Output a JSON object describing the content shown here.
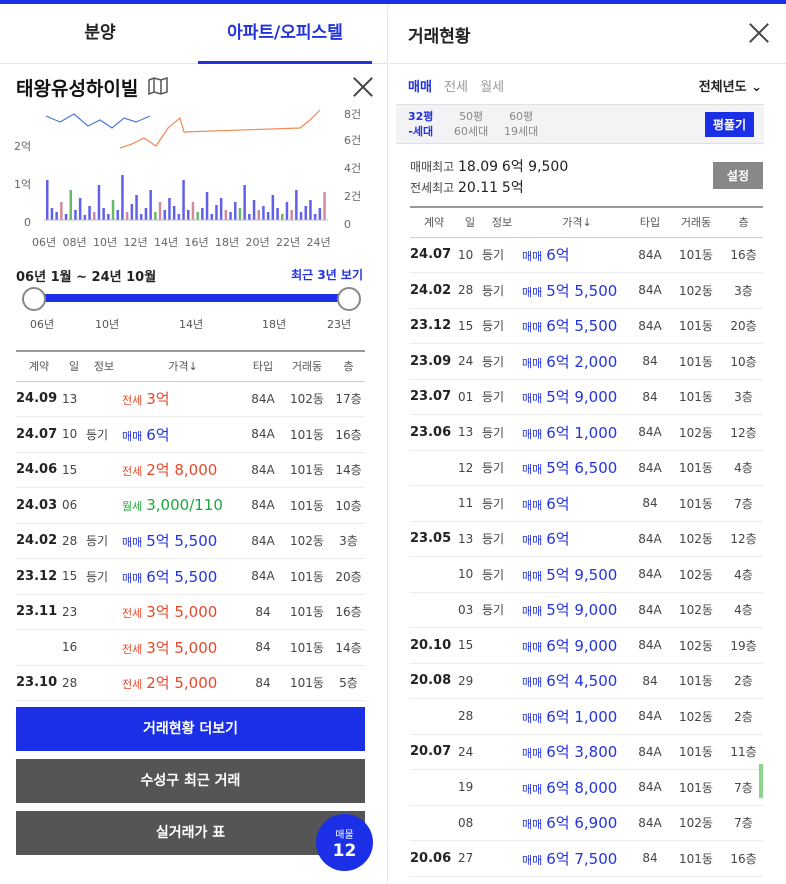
{
  "left": {
    "tabs": [
      "분양",
      "아파트/오피스텔"
    ],
    "title": "태왕유성하이빌",
    "chart": {
      "left_ticks": [
        "2억",
        "1억",
        "0"
      ],
      "right_ticks": [
        "8건",
        "6건",
        "4건",
        "2건",
        "0"
      ],
      "x_ticks": [
        "06년",
        "08년",
        "10년",
        "12년",
        "14년",
        "16년",
        "18년",
        "20년",
        "22년",
        "24년"
      ]
    },
    "period": "06년 1월 ~ 24년 10월",
    "recent_link": "최근 3년 보기",
    "slider_ticks": [
      "06년",
      "10년",
      "14년",
      "18년",
      "23년"
    ],
    "table_headers": [
      "계약",
      "일",
      "정보",
      "가격↓",
      "타입",
      "거래동",
      "층"
    ],
    "rows": [
      {
        "ym": "24.09",
        "d": "13",
        "info": "",
        "kind": "전세",
        "price": "3억",
        "type": "84A",
        "dong": "102동",
        "floor": "17층"
      },
      {
        "ym": "24.07",
        "d": "10",
        "info": "등기",
        "kind": "매매",
        "price": "6억",
        "type": "84A",
        "dong": "101동",
        "floor": "16층"
      },
      {
        "ym": "24.06",
        "d": "15",
        "info": "",
        "kind": "전세",
        "price": "2억 8,000",
        "type": "84A",
        "dong": "101동",
        "floor": "14층"
      },
      {
        "ym": "24.03",
        "d": "06",
        "info": "",
        "kind": "월세",
        "price": "3,000/110",
        "type": "84A",
        "dong": "101동",
        "floor": "10층"
      },
      {
        "ym": "24.02",
        "d": "28",
        "info": "등기",
        "kind": "매매",
        "price": "5억 5,500",
        "type": "84A",
        "dong": "102동",
        "floor": "3층"
      },
      {
        "ym": "23.12",
        "d": "15",
        "info": "등기",
        "kind": "매매",
        "price": "6억 5,500",
        "type": "84A",
        "dong": "101동",
        "floor": "20층"
      },
      {
        "ym": "23.11",
        "d": "23",
        "info": "",
        "kind": "전세",
        "price": "3억 5,000",
        "type": "84",
        "dong": "101동",
        "floor": "16층"
      },
      {
        "ym": "",
        "d": "16",
        "info": "",
        "kind": "전세",
        "price": "3억 5,000",
        "type": "84",
        "dong": "101동",
        "floor": "14층"
      },
      {
        "ym": "23.10",
        "d": "28",
        "info": "",
        "kind": "전세",
        "price": "2억 5,000",
        "type": "84",
        "dong": "101동",
        "floor": "5층"
      }
    ],
    "buttons": [
      "거래현황 더보기",
      "수성구 최근 거래",
      "실거래가 표"
    ],
    "badge": {
      "label": "매물",
      "count": "12"
    }
  },
  "right": {
    "title": "거래현황",
    "deal_tabs": [
      "매매",
      "전세",
      "월세"
    ],
    "year_select": "전체년도",
    "pyeong": [
      {
        "top": "32평",
        "bottom": "-세대"
      },
      {
        "top": "50평",
        "bottom": "60세대"
      },
      {
        "top": "60평",
        "bottom": "19세대"
      }
    ],
    "pyeong_button": "평풀기",
    "max_sale": {
      "label": "매매최고",
      "date": "18.09",
      "price": "6억 9,500"
    },
    "max_jeonse": {
      "label": "전세최고",
      "date": "20.11",
      "price": "5억"
    },
    "settle_button": "설정",
    "table_headers": [
      "계약",
      "일",
      "정보",
      "가격↓",
      "타입",
      "거래동",
      "층"
    ],
    "rows": [
      {
        "ym": "24.07",
        "d": "10",
        "info": "등기",
        "kind": "매매",
        "price": "6억",
        "type": "84A",
        "dong": "101동",
        "floor": "16층"
      },
      {
        "ym": "24.02",
        "d": "28",
        "info": "등기",
        "kind": "매매",
        "price": "5억 5,500",
        "type": "84A",
        "dong": "102동",
        "floor": "3층"
      },
      {
        "ym": "23.12",
        "d": "15",
        "info": "등기",
        "kind": "매매",
        "price": "6억 5,500",
        "type": "84A",
        "dong": "101동",
        "floor": "20층"
      },
      {
        "ym": "23.09",
        "d": "24",
        "info": "등기",
        "kind": "매매",
        "price": "6억 2,000",
        "type": "84",
        "dong": "101동",
        "floor": "10층"
      },
      {
        "ym": "23.07",
        "d": "01",
        "info": "등기",
        "kind": "매매",
        "price": "5억 9,000",
        "type": "84",
        "dong": "101동",
        "floor": "3층"
      },
      {
        "ym": "23.06",
        "d": "13",
        "info": "등기",
        "kind": "매매",
        "price": "6억 1,000",
        "type": "84A",
        "dong": "102동",
        "floor": "12층"
      },
      {
        "ym": "",
        "d": "12",
        "info": "등기",
        "kind": "매매",
        "price": "5억 6,500",
        "type": "84A",
        "dong": "101동",
        "floor": "4층"
      },
      {
        "ym": "",
        "d": "11",
        "info": "등기",
        "kind": "매매",
        "price": "6억",
        "type": "84",
        "dong": "101동",
        "floor": "7층"
      },
      {
        "ym": "23.05",
        "d": "13",
        "info": "등기",
        "kind": "매매",
        "price": "6억",
        "type": "84A",
        "dong": "102동",
        "floor": "12층"
      },
      {
        "ym": "",
        "d": "10",
        "info": "등기",
        "kind": "매매",
        "price": "5억 9,500",
        "type": "84A",
        "dong": "102동",
        "floor": "4층"
      },
      {
        "ym": "",
        "d": "03",
        "info": "등기",
        "kind": "매매",
        "price": "5억 9,000",
        "type": "84A",
        "dong": "102동",
        "floor": "4층"
      },
      {
        "ym": "20.10",
        "d": "15",
        "info": "",
        "kind": "매매",
        "price": "6억 9,000",
        "type": "84A",
        "dong": "102동",
        "floor": "19층"
      },
      {
        "ym": "20.08",
        "d": "29",
        "info": "",
        "kind": "매매",
        "price": "6억 4,500",
        "type": "84",
        "dong": "101동",
        "floor": "2층"
      },
      {
        "ym": "",
        "d": "28",
        "info": "",
        "kind": "매매",
        "price": "6억 1,000",
        "type": "84A",
        "dong": "102동",
        "floor": "2층"
      },
      {
        "ym": "20.07",
        "d": "24",
        "info": "",
        "kind": "매매",
        "price": "6억 3,800",
        "type": "84A",
        "dong": "101동",
        "floor": "11층"
      },
      {
        "ym": "",
        "d": "19",
        "info": "",
        "kind": "매매",
        "price": "6억 8,000",
        "type": "84A",
        "dong": "101동",
        "floor": "7층"
      },
      {
        "ym": "",
        "d": "08",
        "info": "",
        "kind": "매매",
        "price": "6억 6,900",
        "type": "84A",
        "dong": "102동",
        "floor": "7층"
      },
      {
        "ym": "20.06",
        "d": "27",
        "info": "",
        "kind": "매매",
        "price": "6억 7,500",
        "type": "84",
        "dong": "101동",
        "floor": "16층"
      }
    ]
  },
  "colors": {
    "accent": "#1a2fe6",
    "sale": "#2233dd",
    "jeonse": "#e5482b",
    "wolse": "#1ca83c"
  }
}
